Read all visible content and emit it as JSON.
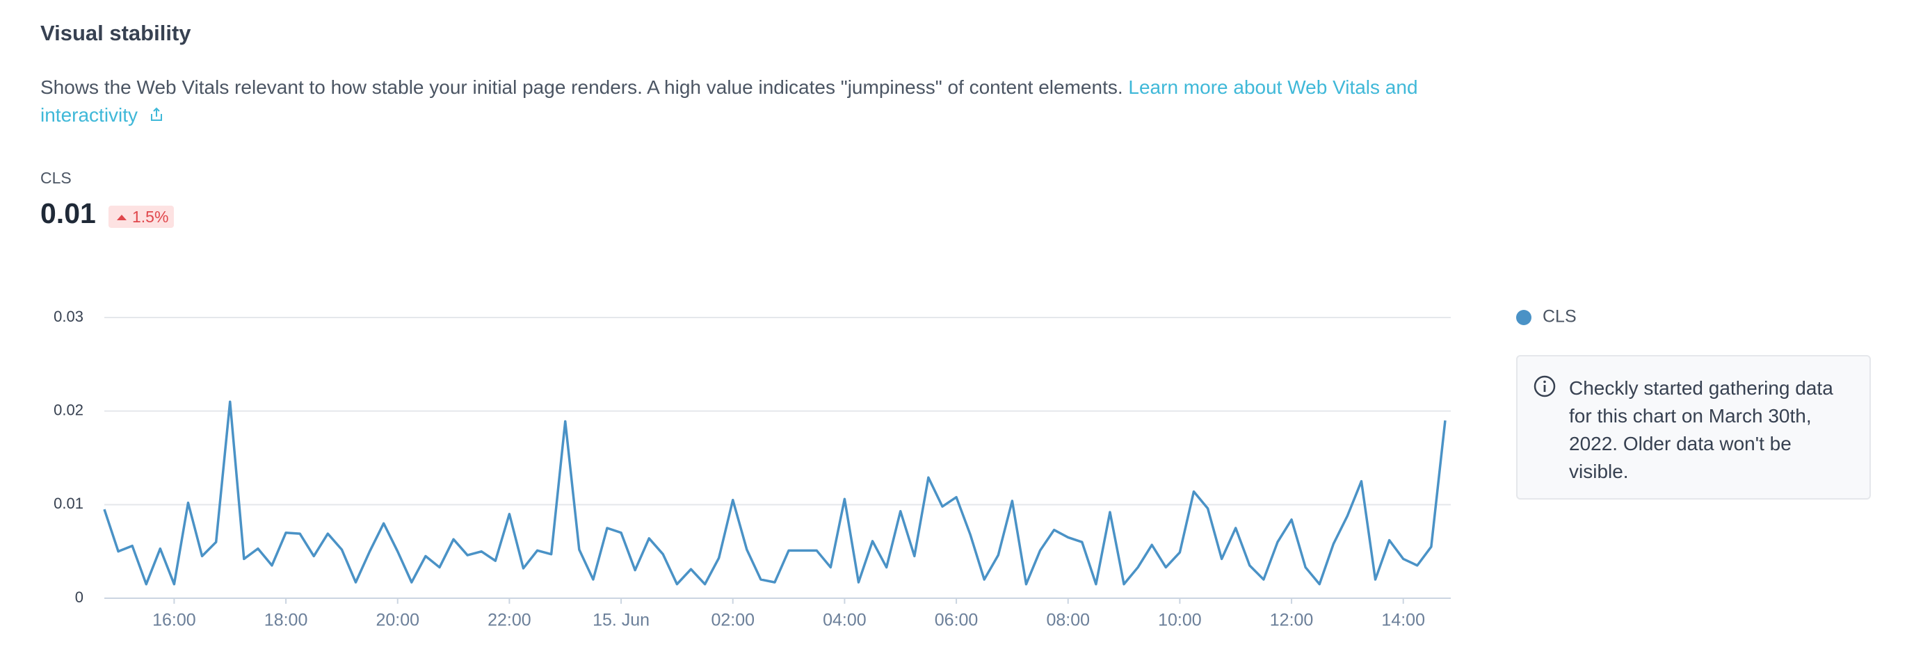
{
  "header": {
    "title": "Visual stability"
  },
  "description": {
    "text": "Shows the Web Vitals relevant to how stable your initial page renders. A high value indicates \"jumpiness\" of content elements.",
    "link": "Learn more about Web Vitals and interactivity"
  },
  "metric": {
    "label": "CLS",
    "value": 0.01,
    "change": "1.5%"
  },
  "note": "Checkly started gathering data for this chart on March 30th, 2022. Older data won't be visible.",
  "chart_data": {
    "type": "line",
    "x": [
      14.75,
      15,
      15.25,
      15.5,
      15.75,
      16,
      16.25,
      16.5,
      16.75,
      17,
      17.25,
      17.5,
      17.75,
      18,
      18.25,
      18.5,
      18.75,
      19,
      19.25,
      19.5,
      19.75,
      20,
      20.25,
      20.5,
      20.75,
      21,
      21.25,
      21.5,
      21.75,
      22,
      22.25,
      22.5,
      22.75,
      23,
      23.25,
      23.5,
      23.75,
      24,
      24.25,
      24.5,
      24.75,
      25,
      25.25,
      25.5,
      25.75,
      26,
      26.25,
      26.5,
      26.75,
      27,
      27.25,
      27.5,
      27.75,
      28,
      28.25,
      28.5,
      28.75,
      29,
      29.25,
      29.5,
      29.75,
      30,
      30.25,
      30.5,
      30.75,
      31,
      31.25,
      31.5,
      31.75,
      32,
      32.25,
      32.5,
      32.75,
      33,
      33.25,
      33.5,
      33.75,
      34,
      34.25,
      34.5,
      34.75,
      35,
      35.25,
      35.5,
      35.75,
      36,
      36.25,
      36.5,
      36.75,
      37,
      37.25,
      37.5,
      37.75,
      38,
      38.25,
      38.5,
      38.75
    ],
    "series": [
      {
        "name": "CLS",
        "color": "#4a92c6",
        "values": [
          0.0095,
          0.005,
          0.0056,
          0.0015,
          0.0053,
          0.0015,
          0.0102,
          0.0045,
          0.006,
          0.021,
          0.0042,
          0.0053,
          0.0035,
          0.007,
          0.0069,
          0.0045,
          0.0069,
          0.0052,
          0.0017,
          0.005,
          0.008,
          0.005,
          0.0017,
          0.0045,
          0.0033,
          0.0063,
          0.0046,
          0.005,
          0.004,
          0.009,
          0.0032,
          0.0051,
          0.0047,
          0.0189,
          0.0052,
          0.002,
          0.0075,
          0.007,
          0.003,
          0.0064,
          0.0047,
          0.0015,
          0.0031,
          0.0015,
          0.0043,
          0.0105,
          0.0052,
          0.002,
          0.0017,
          0.0051,
          0.0051,
          0.0051,
          0.0033,
          0.0106,
          0.0017,
          0.0061,
          0.0033,
          0.0093,
          0.0045,
          0.0129,
          0.0098,
          0.0108,
          0.0068,
          0.002,
          0.0046,
          0.0104,
          0.0015,
          0.0051,
          0.0073,
          0.0065,
          0.006,
          0.0015,
          0.0092,
          0.0015,
          0.0033,
          0.0057,
          0.0033,
          0.0049,
          0.0114,
          0.0096,
          0.0042,
          0.0075,
          0.0035,
          0.002,
          0.006,
          0.0084,
          0.0033,
          0.0015,
          0.0058,
          0.0088,
          0.0125,
          0.002,
          0.0062,
          0.0042,
          0.0035,
          0.0055,
          0.019
        ]
      }
    ],
    "xlim": [
      14.75,
      38.85
    ],
    "xticks": [
      {
        "value": 16,
        "label": "16:00"
      },
      {
        "value": 18,
        "label": "18:00"
      },
      {
        "value": 20,
        "label": "20:00"
      },
      {
        "value": 22,
        "label": "22:00"
      },
      {
        "value": 24,
        "label": "15. Jun"
      },
      {
        "value": 26,
        "label": "02:00"
      },
      {
        "value": 28,
        "label": "04:00"
      },
      {
        "value": 30,
        "label": "06:00"
      },
      {
        "value": 32,
        "label": "08:00"
      },
      {
        "value": 34,
        "label": "10:00"
      },
      {
        "value": 36,
        "label": "12:00"
      },
      {
        "value": 38,
        "label": "14:00"
      }
    ],
    "ylim": [
      0,
      0.03
    ],
    "yticks": [
      0,
      0.01,
      0.02,
      0.03
    ],
    "grid": true,
    "legend": "right"
  }
}
